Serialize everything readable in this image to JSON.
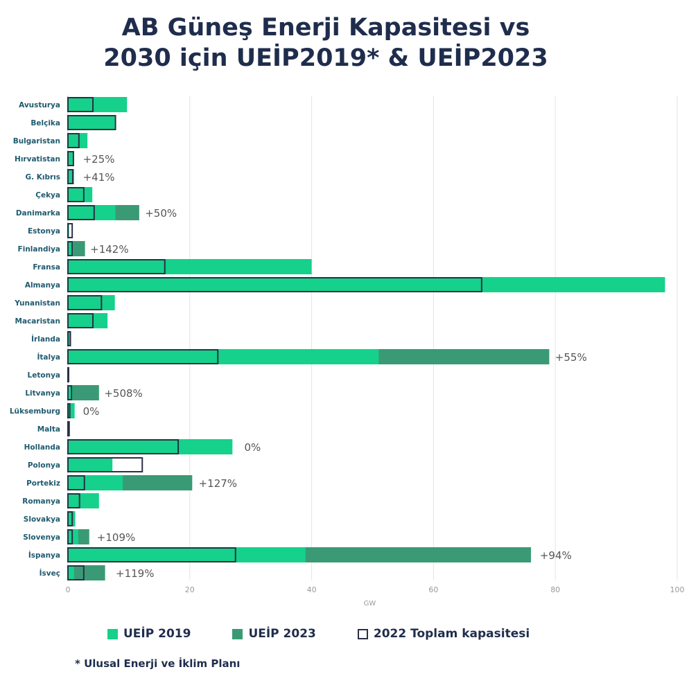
{
  "title_lines": [
    "AB Güneş Enerji Kapasitesi vs",
    "2030 için UEİP2019* & UEİP2023"
  ],
  "colors": {
    "ueip2019": "#15d18b",
    "ueip2023": "#3a9a75",
    "outline": "#2a3045",
    "label": "#1f5a6e",
    "pct": "#555555",
    "grid": "#e3e3e3",
    "axis": "#999999"
  },
  "legend": [
    {
      "label": "UEİP 2019",
      "kind": "ueip2019"
    },
    {
      "label": "UEİP 2023",
      "kind": "ueip2023"
    },
    {
      "label": "2022 Toplam kapasitesi",
      "kind": "outline"
    }
  ],
  "footnote": "* Ulusal Enerji ve İklim Planı",
  "chart_data": {
    "type": "bar",
    "orientation": "horizontal",
    "xlabel": "GW",
    "xlim": [
      0,
      100
    ],
    "xticks": [
      0,
      20,
      40,
      60,
      80,
      100
    ],
    "grid": true,
    "categories": [
      "Avusturya",
      "Belçika",
      "Bulgaristan",
      "Hırvatistan",
      "G. Kıbrıs",
      "Çekya",
      "Danimarka",
      "Estonya",
      "Finlandiya",
      "Fransa",
      "Almanya",
      "Yunanistan",
      "Macaristan",
      "İrlanda",
      "İtalya",
      "Letonya",
      "Litvanya",
      "Lüksemburg",
      "Malta",
      "Hollanda",
      "Polonya",
      "Portekiz",
      "Romanya",
      "Slovakya",
      "Slovenya",
      "İspanya",
      "İsveç"
    ],
    "series": [
      {
        "name": "UEİP 2019",
        "values": [
          9.7,
          7.7,
          3.2,
          0.8,
          1.0,
          4.0,
          7.8,
          0.2,
          0.9,
          40,
          98,
          7.7,
          6.5,
          0.4,
          51,
          0.0,
          0.8,
          1.1,
          0.2,
          27,
          7.3,
          9.0,
          5.1,
          1.2,
          1.7,
          39,
          1.0
        ]
      },
      {
        "name": "UEİP 2023",
        "values": [
          null,
          null,
          null,
          null,
          null,
          null,
          11.7,
          null,
          2.8,
          null,
          null,
          null,
          null,
          null,
          79,
          null,
          5.1,
          null,
          null,
          null,
          null,
          20.4,
          null,
          null,
          3.5,
          76,
          6.1
        ]
      },
      {
        "name": "2022 Toplam kapasitesi",
        "values": [
          4.1,
          7.8,
          1.8,
          0.9,
          0.8,
          2.6,
          4.3,
          0.7,
          0.7,
          15.9,
          67.9,
          5.5,
          4.1,
          0.4,
          24.6,
          0.1,
          0.6,
          0.3,
          0.2,
          18.1,
          12.2,
          2.7,
          1.9,
          0.7,
          0.7,
          27.5,
          2.6
        ]
      }
    ],
    "annotations": [
      {
        "category": "Hırvatistan",
        "text": "+25%",
        "x": 2
      },
      {
        "category": "G. Kıbrıs",
        "text": "+41%",
        "x": 2
      },
      {
        "category": "Danimarka",
        "text": "+50%",
        "x": 12.2
      },
      {
        "category": "Finlandiya",
        "text": "+142%",
        "x": 3.2
      },
      {
        "category": "İtalya",
        "text": "+55%",
        "x": 79.5
      },
      {
        "category": "Litvanya",
        "text": "+508%",
        "x": 5.5
      },
      {
        "category": "Lüksemburg",
        "text": "0%",
        "x": 2
      },
      {
        "category": "Hollanda",
        "text": "0%",
        "x": 28.5
      },
      {
        "category": "Portekiz",
        "text": "+127%",
        "x": 21
      },
      {
        "category": "Slovenya",
        "text": "+109%",
        "x": 4.3
      },
      {
        "category": "İspanya",
        "text": "+94%",
        "x": 77
      },
      {
        "category": "İsveç",
        "text": "+119%",
        "x": 7.4
      }
    ]
  }
}
